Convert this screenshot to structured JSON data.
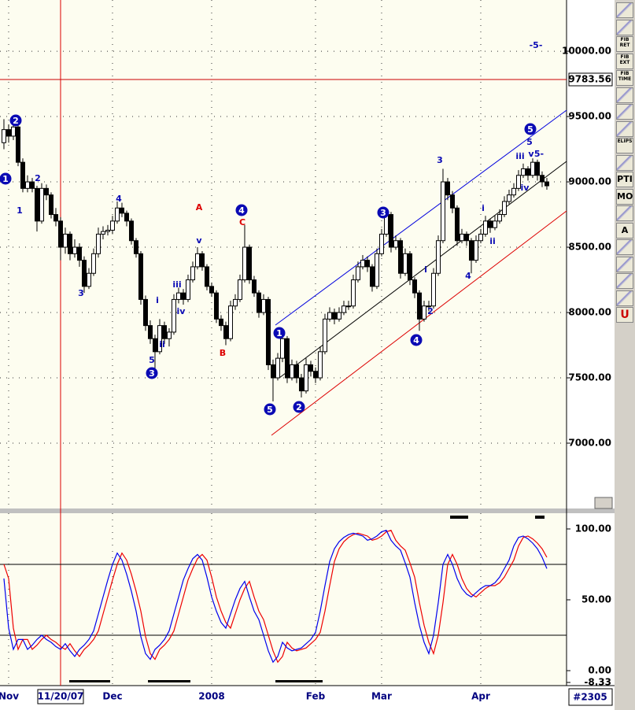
{
  "chart_data": [
    {
      "type": "candlestick",
      "xlim": [
        -0.83,
        119.17
      ],
      "xticks": [
        {
          "value": 1,
          "label": "Nov"
        },
        {
          "value": 12,
          "label": "11/20/07"
        },
        {
          "value": 23,
          "label": "Dec"
        },
        {
          "value": 44,
          "label": "2008"
        },
        {
          "value": 66,
          "label": "Feb"
        },
        {
          "value": 80,
          "label": "Mar"
        },
        {
          "value": 101,
          "label": "Apr"
        }
      ],
      "ylim": [
        6500,
        10392
      ],
      "yticks": [
        {
          "value": 7000,
          "label": "7000.00"
        },
        {
          "value": 7500,
          "label": "7500.00"
        },
        {
          "value": 8000,
          "label": "8000.00"
        },
        {
          "value": 8500,
          "label": "8500.00"
        },
        {
          "value": 9000,
          "label": "9000.00"
        },
        {
          "value": 9500,
          "label": "9500.00"
        },
        {
          "value": 10000,
          "label": "10000.00"
        }
      ],
      "grid": true,
      "reference_line": {
        "value": 9783.56,
        "label": "9783.56",
        "color": "#cc0000"
      },
      "candles": [
        [
          9300,
          9480,
          9250,
          9400
        ],
        [
          9400,
          9440,
          9300,
          9350
        ],
        [
          9350,
          9470,
          9320,
          9420
        ],
        [
          9420,
          9440,
          9120,
          9150
        ],
        [
          9150,
          9180,
          8920,
          8950
        ],
        [
          8950,
          9050,
          8920,
          9000
        ],
        [
          9000,
          9030,
          8920,
          8950
        ],
        [
          8950,
          8970,
          8620,
          8700
        ],
        [
          8700,
          8990,
          8680,
          8950
        ],
        [
          8950,
          8980,
          8860,
          8900
        ],
        [
          8900,
          8920,
          8720,
          8750
        ],
        [
          8750,
          8800,
          8660,
          8700
        ],
        [
          8700,
          8730,
          8400,
          8500
        ],
        [
          8500,
          8650,
          8450,
          8600
        ],
        [
          8600,
          8620,
          8400,
          8450
        ],
        [
          8450,
          8560,
          8420,
          8500
        ],
        [
          8500,
          8530,
          8350,
          8400
        ],
        [
          8400,
          8430,
          8150,
          8200
        ],
        [
          8200,
          8340,
          8180,
          8300
        ],
        [
          8300,
          8490,
          8280,
          8450
        ],
        [
          8450,
          8650,
          8420,
          8600
        ],
        [
          8600,
          8660,
          8560,
          8620
        ],
        [
          8620,
          8670,
          8590,
          8630
        ],
        [
          8630,
          8740,
          8600,
          8700
        ],
        [
          8700,
          8850,
          8680,
          8800
        ],
        [
          8800,
          8840,
          8730,
          8760
        ],
        [
          8760,
          8780,
          8660,
          8700
        ],
        [
          8700,
          8720,
          8520,
          8550
        ],
        [
          8550,
          8570,
          8420,
          8450
        ],
        [
          8450,
          8470,
          8060,
          8100
        ],
        [
          8100,
          8130,
          7860,
          7900
        ],
        [
          7900,
          7940,
          7760,
          7800
        ],
        [
          7800,
          7830,
          7560,
          7700
        ],
        [
          7700,
          7950,
          7680,
          7900
        ],
        [
          7900,
          7930,
          7760,
          7800
        ],
        [
          7800,
          7880,
          7740,
          7850
        ],
        [
          7850,
          8140,
          7830,
          8100
        ],
        [
          8100,
          8190,
          8070,
          8150
        ],
        [
          8150,
          8180,
          8060,
          8100
        ],
        [
          8100,
          8290,
          8080,
          8250
        ],
        [
          8250,
          8390,
          8230,
          8350
        ],
        [
          8350,
          8500,
          8330,
          8450
        ],
        [
          8450,
          8470,
          8320,
          8350
        ],
        [
          8350,
          8370,
          8170,
          8200
        ],
        [
          8200,
          8230,
          8120,
          8150
        ],
        [
          8150,
          8170,
          7920,
          7950
        ],
        [
          7950,
          7980,
          7860,
          7900
        ],
        [
          7900,
          7930,
          7750,
          7800
        ],
        [
          7800,
          8090,
          7780,
          8050
        ],
        [
          8050,
          8140,
          8020,
          8100
        ],
        [
          8100,
          8290,
          8080,
          8250
        ],
        [
          8250,
          8670,
          8230,
          8500
        ],
        [
          8500,
          8520,
          8220,
          8250
        ],
        [
          8250,
          8280,
          8120,
          8150
        ],
        [
          8150,
          8170,
          7960,
          8000
        ],
        [
          8000,
          8140,
          7980,
          8100
        ],
        [
          8100,
          8120,
          7560,
          7600
        ],
        [
          7600,
          7640,
          7320,
          7500
        ],
        [
          7500,
          7690,
          7480,
          7650
        ],
        [
          7650,
          7830,
          7620,
          7800
        ],
        [
          7800,
          7820,
          7460,
          7500
        ],
        [
          7500,
          7640,
          7480,
          7600
        ],
        [
          7600,
          7630,
          7460,
          7500
        ],
        [
          7500,
          7530,
          7350,
          7400
        ],
        [
          7400,
          7650,
          7380,
          7600
        ],
        [
          7600,
          7630,
          7510,
          7550
        ],
        [
          7550,
          7580,
          7460,
          7500
        ],
        [
          7500,
          7740,
          7480,
          7700
        ],
        [
          7700,
          7990,
          7680,
          7950
        ],
        [
          7950,
          8040,
          7930,
          8000
        ],
        [
          8000,
          8030,
          7910,
          7950
        ],
        [
          7950,
          8040,
          7930,
          8000
        ],
        [
          8000,
          8090,
          7980,
          8050
        ],
        [
          8050,
          8090,
          8020,
          8050
        ],
        [
          8050,
          8290,
          8030,
          8250
        ],
        [
          8250,
          8390,
          8230,
          8350
        ],
        [
          8350,
          8440,
          8330,
          8400
        ],
        [
          8400,
          8430,
          8310,
          8350
        ],
        [
          8350,
          8370,
          8160,
          8200
        ],
        [
          8200,
          8490,
          8180,
          8450
        ],
        [
          8450,
          8640,
          8430,
          8600
        ],
        [
          8600,
          8790,
          8580,
          8750
        ],
        [
          8750,
          8770,
          8460,
          8500
        ],
        [
          8500,
          8590,
          8480,
          8550
        ],
        [
          8550,
          8570,
          8260,
          8300
        ],
        [
          8300,
          8490,
          8280,
          8450
        ],
        [
          8450,
          8470,
          8210,
          8250
        ],
        [
          8250,
          8270,
          8110,
          8150
        ],
        [
          8150,
          8170,
          7860,
          7950
        ],
        [
          7950,
          8090,
          7930,
          8050
        ],
        [
          8050,
          8090,
          8010,
          8050
        ],
        [
          8050,
          8340,
          8030,
          8300
        ],
        [
          8300,
          8590,
          8280,
          8550
        ],
        [
          8550,
          9100,
          8530,
          9000
        ],
        [
          9000,
          9030,
          8860,
          8900
        ],
        [
          8900,
          8930,
          8760,
          8800
        ],
        [
          8800,
          8820,
          8510,
          8550
        ],
        [
          8550,
          8640,
          8530,
          8600
        ],
        [
          8600,
          8620,
          8510,
          8550
        ],
        [
          8550,
          8570,
          8300,
          8400
        ],
        [
          8400,
          8590,
          8380,
          8550
        ],
        [
          8550,
          8640,
          8530,
          8600
        ],
        [
          8600,
          8740,
          8580,
          8700
        ],
        [
          8700,
          8720,
          8610,
          8650
        ],
        [
          8650,
          8740,
          8630,
          8700
        ],
        [
          8700,
          8790,
          8680,
          8750
        ],
        [
          8750,
          8890,
          8730,
          8850
        ],
        [
          8850,
          8940,
          8830,
          8900
        ],
        [
          8900,
          8990,
          8880,
          8950
        ],
        [
          8950,
          9090,
          8930,
          9050
        ],
        [
          9050,
          9140,
          9030,
          9100
        ],
        [
          9100,
          9120,
          9010,
          9050
        ],
        [
          9050,
          9180,
          9030,
          9150
        ],
        [
          9150,
          9170,
          9010,
          9050
        ],
        [
          9050,
          9080,
          8960,
          9000
        ],
        [
          9000,
          9030,
          8940,
          8970
        ]
      ],
      "annotations": [
        {
          "text": "1",
          "style": "circle",
          "color": "#0a0ab4"
        },
        {
          "text": "2",
          "style": "circle",
          "color": "#0a0ab4"
        },
        {
          "text": "1",
          "style": "plain",
          "color": "#0a0ab4"
        },
        {
          "text": "2",
          "style": "plain",
          "color": "#0a0ab4"
        },
        {
          "text": "3",
          "style": "plain",
          "color": "#0a0ab4"
        },
        {
          "text": "4",
          "style": "plain",
          "color": "#0a0ab4"
        },
        {
          "text": "5",
          "style": "plain",
          "color": "#0a0ab4"
        },
        {
          "text": "3",
          "style": "circle",
          "color": "#0a0ab4"
        },
        {
          "text": "i",
          "style": "plain",
          "color": "#0a0ab4"
        },
        {
          "text": "ii",
          "style": "plain",
          "color": "#0a0ab4"
        },
        {
          "text": "iii",
          "style": "plain",
          "color": "#0a0ab4"
        },
        {
          "text": "iv",
          "style": "plain",
          "color": "#0a0ab4"
        },
        {
          "text": "v",
          "style": "plain",
          "color": "#0a0ab4"
        },
        {
          "text": "A",
          "style": "plain",
          "color": "#dd0000"
        },
        {
          "text": "B",
          "style": "plain",
          "color": "#dd0000"
        },
        {
          "text": "C",
          "style": "plain",
          "color": "#dd0000"
        },
        {
          "text": "4",
          "style": "circle",
          "color": "#0a0ab4"
        },
        {
          "text": "5",
          "style": "circle",
          "color": "#0a0ab4"
        },
        {
          "text": "1",
          "style": "circle",
          "color": "#0a0ab4"
        },
        {
          "text": "2",
          "style": "circle",
          "color": "#0a0ab4"
        },
        {
          "text": "3",
          "style": "circle",
          "color": "#0a0ab4"
        },
        {
          "text": "3",
          "style": "plain",
          "color": "#0a0ab4"
        },
        {
          "text": "i",
          "style": "plain",
          "color": "#0a0ab4"
        },
        {
          "text": "2",
          "style": "plain",
          "color": "#0a0ab4"
        },
        {
          "text": "4",
          "style": "circle",
          "color": "#0a0ab4"
        },
        {
          "text": "4",
          "style": "plain",
          "color": "#0a0ab4"
        },
        {
          "text": "i",
          "style": "plain",
          "color": "#0a0ab4"
        },
        {
          "text": "ii",
          "style": "plain",
          "color": "#0a0ab4"
        },
        {
          "text": "iii",
          "style": "plain",
          "color": "#0a0ab4"
        },
        {
          "text": "iv",
          "style": "plain",
          "color": "#0a0ab4"
        },
        {
          "text": "5",
          "style": "plain",
          "color": "#0a0ab4"
        },
        {
          "text": "v",
          "style": "plain",
          "color": "#0a0ab4"
        },
        {
          "text": "5-",
          "style": "plain",
          "color": "#0a0ab4"
        },
        {
          "text": "5",
          "style": "circle",
          "color": "#0a0ab4"
        },
        {
          "text": "-5-",
          "style": "plain",
          "color": "#0a0ab4"
        }
      ]
    },
    {
      "type": "line",
      "xlim": [
        -0.83,
        119.17
      ],
      "ylim": [
        -10,
        111.1
      ],
      "yticks": [
        {
          "value": -8.33,
          "label": "-8.33"
        },
        {
          "value": 0,
          "label": "0.00"
        },
        {
          "value": 50,
          "label": "50.00"
        },
        {
          "value": 100,
          "label": "100.00"
        }
      ],
      "levels": [
        75,
        25
      ],
      "series": [
        {
          "color": "#0000ee",
          "values": [
            65,
            30,
            15,
            22,
            22,
            15,
            18,
            22,
            25,
            22,
            20,
            17,
            15,
            19,
            14,
            10,
            15,
            18,
            22,
            28,
            40,
            52,
            64,
            75,
            83,
            78,
            68,
            56,
            42,
            24,
            12,
            8,
            15,
            18,
            22,
            28,
            40,
            52,
            64,
            72,
            79,
            82,
            78,
            66,
            52,
            42,
            34,
            30,
            40,
            50,
            58,
            63,
            52,
            42,
            36,
            25,
            14,
            6,
            10,
            20,
            16,
            14,
            15,
            16,
            19,
            22,
            27,
            42,
            60,
            77,
            86,
            91,
            94,
            96,
            97,
            96,
            95,
            92,
            93,
            95,
            98,
            99,
            92,
            88,
            85,
            76,
            66,
            48,
            32,
            20,
            12,
            25,
            48,
            75,
            82,
            75,
            65,
            58,
            54,
            52,
            55,
            58,
            60,
            60,
            62,
            66,
            72,
            78,
            88,
            94,
            95,
            93,
            90,
            86,
            80,
            72
          ]
        },
        {
          "color": "#ee0000",
          "values": [
            75,
            65,
            30,
            15,
            22,
            22,
            15,
            18,
            22,
            25,
            22,
            20,
            17,
            15,
            19,
            14,
            10,
            15,
            18,
            22,
            28,
            40,
            52,
            64,
            75,
            83,
            78,
            68,
            56,
            42,
            24,
            12,
            8,
            15,
            18,
            22,
            28,
            40,
            52,
            64,
            72,
            79,
            82,
            78,
            66,
            52,
            42,
            34,
            30,
            40,
            50,
            58,
            63,
            52,
            42,
            36,
            25,
            14,
            6,
            10,
            20,
            16,
            14,
            15,
            16,
            19,
            22,
            27,
            42,
            60,
            77,
            86,
            91,
            94,
            96,
            97,
            96,
            95,
            92,
            93,
            95,
            98,
            99,
            92,
            88,
            85,
            76,
            66,
            48,
            32,
            20,
            12,
            25,
            48,
            75,
            82,
            75,
            65,
            58,
            54,
            52,
            55,
            58,
            60,
            60,
            62,
            66,
            72,
            78,
            88,
            94,
            95,
            93,
            90,
            86,
            80
          ]
        }
      ]
    }
  ],
  "toolbar": [
    "FIB RET",
    "FIB EXT",
    "FIB TIME",
    "ELIPS",
    "PTI",
    "MOB",
    "A",
    "U"
  ],
  "status": "#2305"
}
